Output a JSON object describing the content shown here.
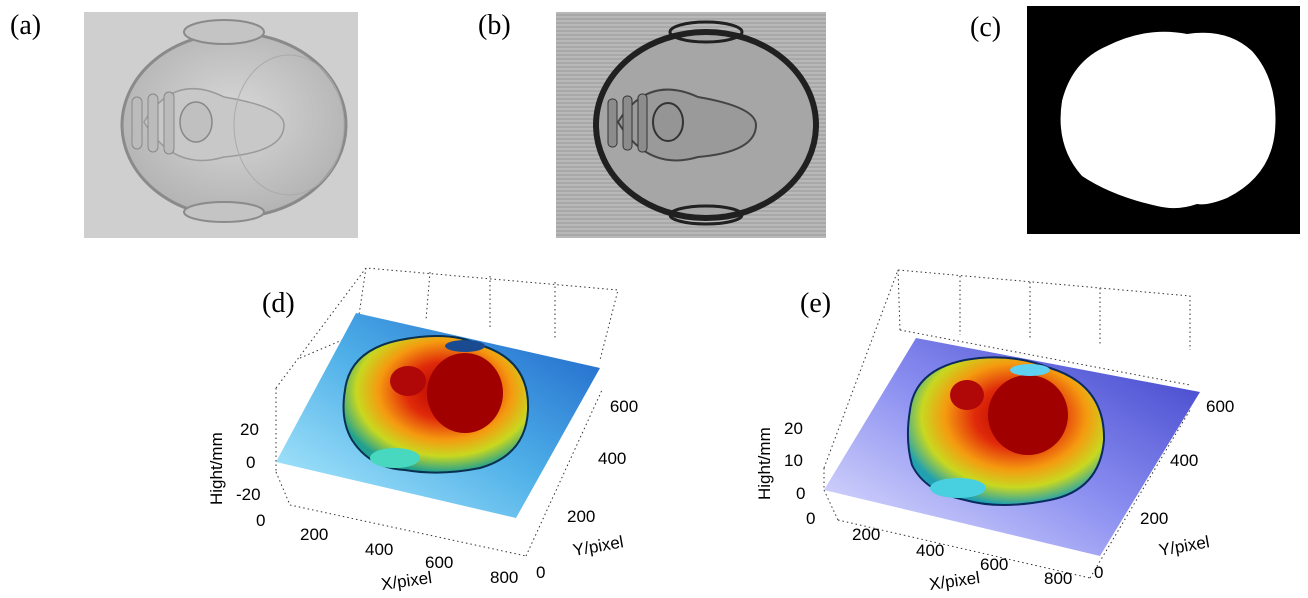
{
  "panels": {
    "a": {
      "label": "(a)"
    },
    "b": {
      "label": "(b)"
    },
    "c": {
      "label": "(c)"
    },
    "d": {
      "label": "(d)"
    },
    "e": {
      "label": "(e)"
    }
  },
  "plot_d": {
    "xlabel": "X/pixel",
    "ylabel": "Y/pixel",
    "zlabel": "Hight/mm",
    "x_ticks": [
      "0",
      "200",
      "400",
      "600",
      "800"
    ],
    "y_ticks": [
      "0",
      "200",
      "400",
      "600"
    ],
    "z_ticks": [
      "20",
      "0",
      "-20"
    ]
  },
  "plot_e": {
    "xlabel": "X/pixel",
    "ylabel": "Y/pixel",
    "zlabel": "Hight/mm",
    "x_ticks": [
      "0",
      "200",
      "400",
      "600",
      "800"
    ],
    "y_ticks": [
      "0",
      "200",
      "400",
      "600"
    ],
    "z_ticks": [
      "20",
      "10",
      "0"
    ]
  },
  "chart_data": [
    {
      "type": "surface",
      "xlabel": "X/pixel",
      "ylabel": "Y/pixel",
      "zlabel": "Hight/mm",
      "xlim": [
        0,
        800
      ],
      "ylim": [
        0,
        600
      ],
      "zlim": [
        -20,
        20
      ],
      "grid": true
    },
    {
      "type": "surface",
      "xlabel": "X/pixel",
      "ylabel": "Y/pixel",
      "zlabel": "Hight/mm",
      "xlim": [
        0,
        800
      ],
      "ylim": [
        0,
        600
      ],
      "zlim": [
        0,
        20
      ],
      "grid": true
    }
  ]
}
